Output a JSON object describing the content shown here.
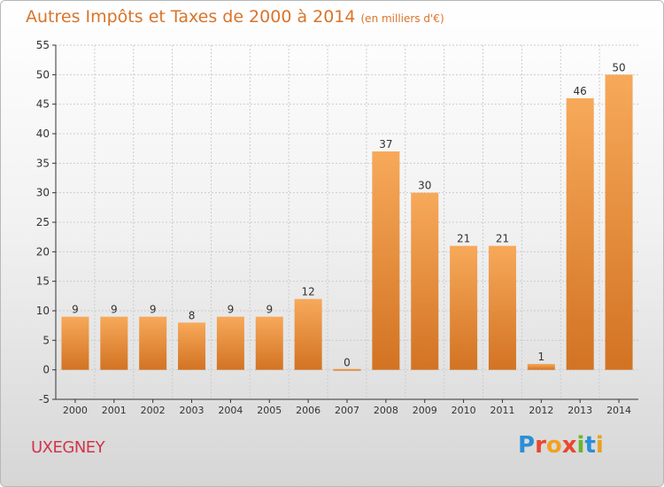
{
  "title": "Autres Impôts et Taxes de 2000 à 2014",
  "title_unit": "(en milliers d'€)",
  "commune": "UXEGNEY",
  "brand": "Proxiti",
  "colors": {
    "title": "#d9742a",
    "commune": "#d1354a",
    "bar_light": "#f7a95a",
    "bar_dark": "#d27322",
    "axis": "#333333",
    "grid": "#cccccc"
  },
  "chart_data": {
    "type": "bar",
    "categories": [
      "2000",
      "2001",
      "2002",
      "2003",
      "2004",
      "2005",
      "2006",
      "2007",
      "2008",
      "2009",
      "2010",
      "2011",
      "2012",
      "2013",
      "2014"
    ],
    "values": [
      9,
      9,
      9,
      8,
      9,
      9,
      12,
      0,
      37,
      30,
      21,
      21,
      1,
      46,
      50
    ],
    "ylim": [
      -5,
      55
    ],
    "yticks": [
      -5,
      0,
      5,
      10,
      15,
      20,
      25,
      30,
      35,
      40,
      45,
      50,
      55
    ],
    "grid": true,
    "legend": "none",
    "data_labels": true
  }
}
